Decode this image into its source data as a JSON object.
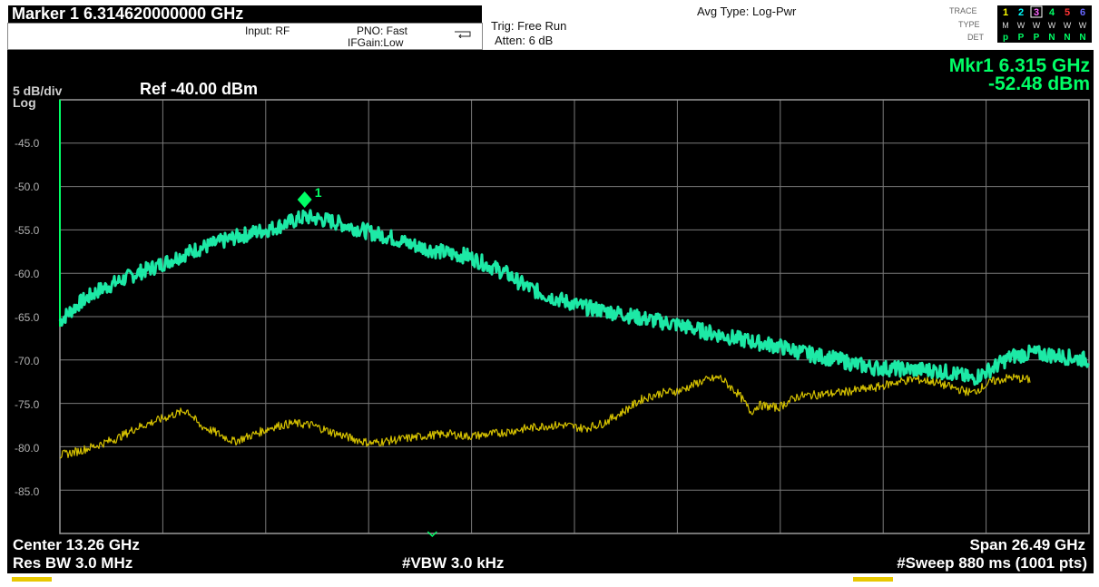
{
  "header": {
    "marker_title": "Marker 1  6.314620000000 GHz",
    "input": "Input: RF",
    "pno": "PNO: Fast",
    "ifgain": "IFGain:Low",
    "trig": "Trig: Free Run",
    "atten": "Atten: 6 dB",
    "avg_type": "Avg Type: Log-Pwr"
  },
  "trace_panel": {
    "row_labels": [
      "TRACE",
      "TYPE",
      "DET"
    ],
    "trace_numbers": [
      "1",
      "2",
      "3",
      "4",
      "5",
      "6"
    ],
    "trace_number_colors": [
      "#ffff00",
      "#00ffff",
      "#ff66ff",
      "#00ff66",
      "#ff3333",
      "#6666ff"
    ],
    "type_row": "MWWWWW",
    "det_row": [
      "p",
      "P",
      "P",
      "N",
      "N",
      "N"
    ]
  },
  "screen": {
    "scale": "5 dB/div",
    "scale_type": "Log",
    "ref": "Ref -40.00 dBm",
    "marker_readout_freq": "Mkr1 6.315 GHz",
    "marker_readout_amp": "-52.48 dBm",
    "marker_label": "1",
    "y_labels": [
      "-45.0",
      "-50.0",
      "-55.0",
      "-60.0",
      "-65.0",
      "-70.0",
      "-75.0",
      "-80.0",
      "-85.0"
    ],
    "center": "Center 13.26 GHz",
    "span": "Span 26.49 GHz",
    "res_bw": "Res BW 3.0 MHz",
    "vbw": "#VBW 3.0 kHz",
    "sweep": "#Sweep  880 ms (1001 pts)"
  },
  "colors": {
    "trace1": "#1de9a6",
    "trace2": "#d4c000",
    "marker": "#00ff66",
    "grid": "#7a7a7a",
    "background": "#000000"
  },
  "chart_data": {
    "type": "line",
    "ref_level_dbm": -40,
    "db_per_div": 5,
    "xlim_ghz": [
      0.015,
      26.505
    ],
    "ylim_dbm": [
      -90,
      -40
    ],
    "grid": true,
    "series": [
      {
        "x": [
          0.015,
          0.5,
          1.0,
          1.5,
          2.0,
          2.5,
          3.0,
          3.5,
          4.0,
          4.5,
          5.0,
          5.5,
          6.0,
          6.315,
          6.5,
          7.0,
          7.5,
          8.0,
          8.5,
          9.0,
          9.5,
          10.0,
          10.5,
          11.0,
          11.5,
          12.0,
          12.5,
          13.0,
          13.5,
          14.0,
          14.5,
          15.0,
          15.5,
          16.0,
          16.5,
          17.0,
          17.5,
          18.0,
          18.5,
          19.0,
          19.5,
          20.0,
          20.5,
          21.0,
          21.5,
          22.0,
          22.5,
          23.0,
          23.5,
          24.0,
          24.5,
          25.0,
          25.5,
          26.0,
          26.505
        ],
        "y": [
          -65.5,
          -63.5,
          -62.0,
          -61.0,
          -60.0,
          -59.2,
          -58.2,
          -57.3,
          -56.6,
          -55.9,
          -55.3,
          -54.8,
          -54.0,
          -53.5,
          -53.6,
          -54.0,
          -54.6,
          -55.3,
          -55.8,
          -56.6,
          -57.2,
          -57.7,
          -58.0,
          -59.0,
          -60.0,
          -61.5,
          -62.5,
          -63.2,
          -63.9,
          -64.3,
          -64.7,
          -65.2,
          -65.6,
          -66.0,
          -66.6,
          -67.1,
          -67.6,
          -68.0,
          -68.4,
          -69.0,
          -69.5,
          -69.9,
          -70.5,
          -70.9,
          -71.0,
          -71.1,
          -71.2,
          -71.5,
          -72.2,
          -71.0,
          -69.6,
          -69.2,
          -69.4,
          -69.7,
          -70.0
        ]
      },
      {
        "x": [
          0.015,
          0.5,
          1.0,
          1.5,
          2.0,
          2.5,
          3.0,
          3.3,
          3.6,
          4.0,
          4.5,
          5.0,
          5.5,
          6.0,
          6.5,
          7.0,
          7.5,
          8.0,
          8.5,
          9.0,
          9.5,
          10.0,
          10.5,
          11.0,
          11.5,
          12.0,
          12.5,
          13.0,
          13.5,
          14.0,
          14.5,
          15.0,
          15.5,
          16.0,
          16.5,
          17.0,
          17.5,
          17.8,
          18.0,
          18.5,
          19.0,
          19.5,
          20.0,
          20.5,
          21.0,
          21.5,
          22.0,
          22.5,
          23.0,
          23.5,
          24.0,
          24.5,
          25.0
        ],
        "y": [
          -81.0,
          -80.5,
          -79.8,
          -79.0,
          -77.8,
          -77.0,
          -76.2,
          -75.8,
          -77.5,
          -78.3,
          -79.4,
          -78.6,
          -77.7,
          -77.3,
          -77.5,
          -78.3,
          -79.0,
          -79.6,
          -79.3,
          -79.0,
          -78.7,
          -78.5,
          -78.8,
          -78.6,
          -78.3,
          -77.9,
          -77.6,
          -77.5,
          -77.9,
          -77.3,
          -76.0,
          -74.5,
          -73.8,
          -73.5,
          -72.5,
          -72.0,
          -74.0,
          -76.0,
          -75.2,
          -75.5,
          -74.2,
          -74.0,
          -73.8,
          -73.5,
          -73.2,
          -72.6,
          -72.2,
          -72.5,
          -73.2,
          -73.8,
          -72.5,
          -72.0,
          -72.3
        ]
      }
    ]
  }
}
